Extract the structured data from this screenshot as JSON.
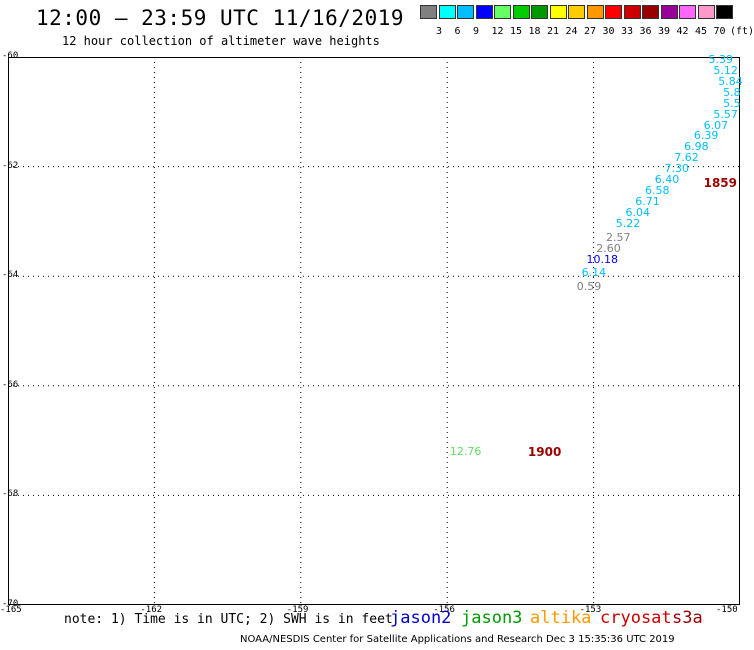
{
  "header": {
    "title": "12:00 – 23:59 UTC 11/16/2019",
    "subtitle": "12 hour collection of altimeter wave heights"
  },
  "colorbar": {
    "colors": [
      "#808080",
      "#00ffff",
      "#00bfff",
      "#0000ff",
      "#66ff66",
      "#00cc00",
      "#009900",
      "#ffff00",
      "#ffcc00",
      "#ff9900",
      "#ff0000",
      "#cc0000",
      "#990000",
      "#990099",
      "#ff66ff",
      "#ff99cc",
      "#000000"
    ],
    "labels": [
      "3",
      "6",
      "9",
      "12",
      "15",
      "18",
      "21",
      "24",
      "27",
      "30",
      "33",
      "36",
      "39",
      "42",
      "45",
      "70",
      "(ft)"
    ]
  },
  "axes": {
    "y_labels": [
      "-60",
      "-62",
      "-64",
      "-66",
      "-68",
      "-70"
    ],
    "x_labels": [
      "-165",
      "-162",
      "-159",
      "-156",
      "-153",
      "-150"
    ]
  },
  "chart_data": {
    "type": "scatter",
    "x_unit": "longitude",
    "y_unit": "latitude",
    "xlim": [
      -165,
      -150
    ],
    "ylim": [
      -70,
      -60
    ],
    "grid": true,
    "observations": [
      {
        "v": "5.39",
        "lon": -150.4,
        "lat": -60.05,
        "color": "#00bfff"
      },
      {
        "v": "5.12",
        "lon": -150.3,
        "lat": -60.25,
        "color": "#00bfff"
      },
      {
        "v": "5.84",
        "lon": -150.2,
        "lat": -60.45,
        "color": "#00bfff"
      },
      {
        "v": "5.8",
        "lon": -150.1,
        "lat": -60.65,
        "color": "#00bfff"
      },
      {
        "v": "5.5",
        "lon": -150.1,
        "lat": -60.85,
        "color": "#00bfff"
      },
      {
        "v": "5.57",
        "lon": -150.3,
        "lat": -61.05,
        "color": "#00bfff"
      },
      {
        "v": "6.07",
        "lon": -150.5,
        "lat": -61.25,
        "color": "#00bfff"
      },
      {
        "v": "6.39",
        "lon": -150.7,
        "lat": -61.45,
        "color": "#00bfff"
      },
      {
        "v": "6.98",
        "lon": -150.9,
        "lat": -61.65,
        "color": "#00bfff"
      },
      {
        "v": "7.62",
        "lon": -151.1,
        "lat": -61.85,
        "color": "#00bfff"
      },
      {
        "v": "7.30",
        "lon": -151.3,
        "lat": -62.05,
        "color": "#00bfff"
      },
      {
        "v": "6.40",
        "lon": -151.5,
        "lat": -62.25,
        "color": "#00bfff"
      },
      {
        "v": "6.58",
        "lon": -151.7,
        "lat": -62.45,
        "color": "#00bfff"
      },
      {
        "v": "6.71",
        "lon": -151.9,
        "lat": -62.65,
        "color": "#00bfff"
      },
      {
        "v": "6.04",
        "lon": -152.1,
        "lat": -62.85,
        "color": "#00bfff"
      },
      {
        "v": "5.22",
        "lon": -152.3,
        "lat": -63.05,
        "color": "#00bfff"
      },
      {
        "v": "2.57",
        "lon": -152.5,
        "lat": -63.3,
        "color": "#808080"
      },
      {
        "v": "2.60",
        "lon": -152.7,
        "lat": -63.5,
        "color": "#808080"
      },
      {
        "v": "10.18",
        "lon": -152.9,
        "lat": -63.7,
        "color": "#0000ff"
      },
      {
        "v": "6.14",
        "lon": -153.0,
        "lat": -63.95,
        "color": "#00bfff"
      },
      {
        "v": "0.59",
        "lon": -153.1,
        "lat": -64.2,
        "color": "#808080"
      },
      {
        "v": "12.76",
        "lon": -155.7,
        "lat": -67.2,
        "color": "#66dd66"
      }
    ],
    "time_marks": [
      {
        "t": "1859",
        "lon": -150.5,
        "lat": -62.3,
        "color": "#990000"
      },
      {
        "t": "1900",
        "lon": -154.1,
        "lat": -67.2,
        "color": "#990000"
      }
    ]
  },
  "footer": {
    "note": "note: 1) Time is in UTC; 2) SWH is in feet",
    "missions": [
      {
        "name": "jason2",
        "color": "#0000cc"
      },
      {
        "name": "jason3",
        "color": "#009900"
      },
      {
        "name": "altika",
        "color": "#ff9900"
      },
      {
        "name": "cryosat",
        "color": "#cc0000"
      },
      {
        "name": "s3a",
        "color": "#990000"
      }
    ],
    "credit": "NOAA/NESDIS Center for Satellite Applications and Research   Dec  3 15:35:36 UTC 2019"
  }
}
